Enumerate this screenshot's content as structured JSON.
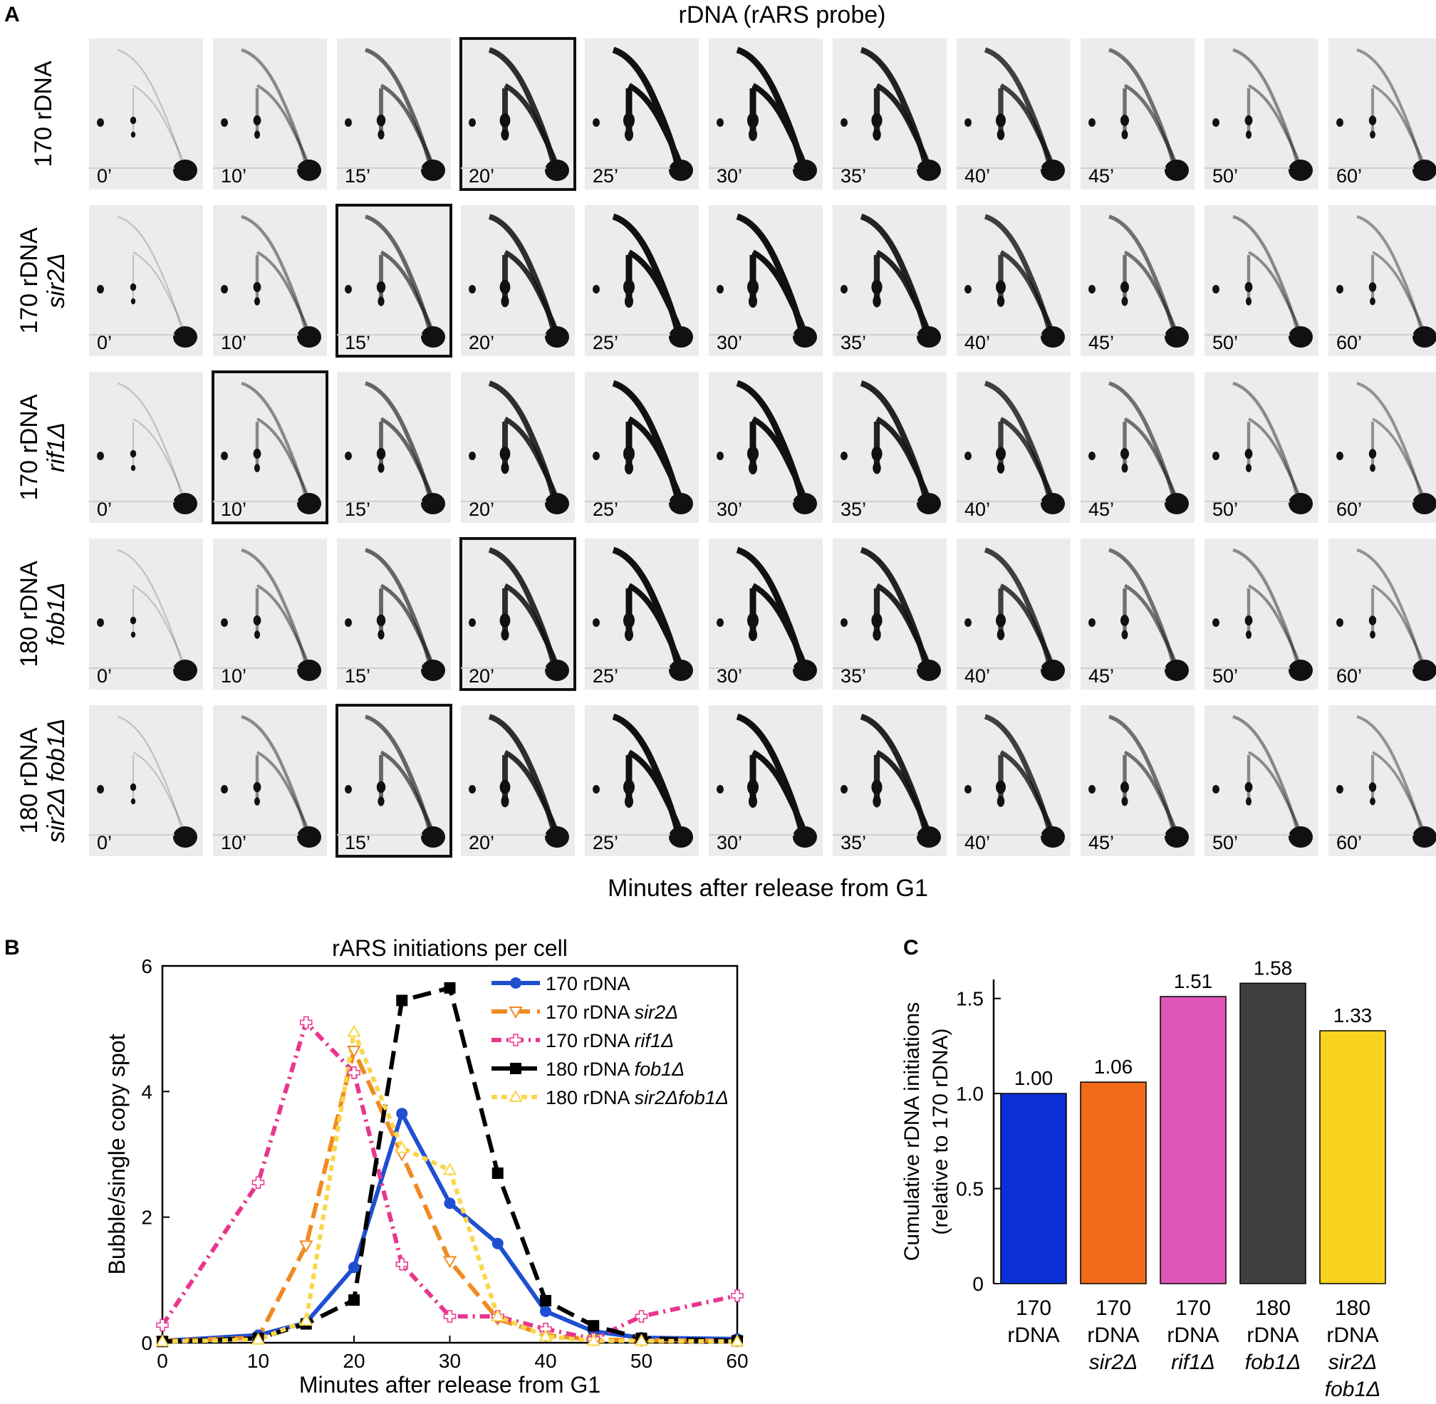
{
  "panel_a": {
    "letter": "A",
    "title": "rDNA (rARS probe)",
    "x_label": "Minutes after release from G1",
    "time_labels": [
      "0’",
      "10’",
      "15’",
      "20’",
      "25’",
      "30’",
      "35’",
      "40’",
      "45’",
      "50’",
      "60’"
    ],
    "rows": [
      {
        "line1": "170 rDNA",
        "line2": "",
        "boxed_time_index": 3
      },
      {
        "line1": "170 rDNA",
        "line2": "sir2Δ",
        "boxed_time_index": 2
      },
      {
        "line1": "170 rDNA",
        "line2": "rif1Δ",
        "boxed_time_index": 1
      },
      {
        "line1": "180 rDNA",
        "line2": "fob1Δ",
        "boxed_time_index": 3
      },
      {
        "line1": "180 rDNA",
        "line2": "sir2Δ fob1Δ",
        "boxed_time_index": 2
      }
    ]
  },
  "chart_data": [
    {
      "panel": "B",
      "type": "line",
      "title": "rARS initiations per cell",
      "xlabel": "Minutes after release from G1",
      "ylabel": "Bubble/single copy spot",
      "xlim": [
        0,
        60
      ],
      "ylim": [
        0,
        6
      ],
      "xticks": [
        0,
        10,
        20,
        30,
        40,
        50,
        60
      ],
      "yticks": [
        0,
        2,
        4,
        6
      ],
      "legend_position": "top-right",
      "series": [
        {
          "name": "170 rDNA",
          "name_main": "170 rDNA",
          "name_italic": "",
          "color": "#1f4fd1",
          "marker": "circle",
          "dash": "solid",
          "x": [
            0,
            10,
            15,
            20,
            25,
            30,
            35,
            40,
            45,
            50,
            60
          ],
          "y": [
            0.03,
            0.12,
            0.32,
            1.2,
            3.65,
            2.22,
            1.58,
            0.5,
            0.18,
            0.08,
            0.06
          ]
        },
        {
          "name": "170 rDNA sir2Δ",
          "name_main": "170 rDNA ",
          "name_italic": "sir2Δ",
          "color": "#f08a22",
          "marker": "triangle-down-open",
          "dash": "dash",
          "x": [
            0,
            10,
            15,
            20,
            25,
            30,
            35,
            40,
            45,
            50,
            60
          ],
          "y": [
            0.03,
            0.08,
            1.55,
            4.65,
            3.0,
            1.3,
            0.38,
            0.12,
            0.05,
            0.04,
            0.03
          ]
        },
        {
          "name": "170 rDNA rif1Δ",
          "name_main": "170 rDNA ",
          "name_italic": "rif1Δ",
          "color": "#e8368f",
          "marker": "plus-open",
          "dash": "dashdot",
          "x": [
            0,
            10,
            15,
            20,
            25,
            30,
            35,
            40,
            45,
            50,
            60
          ],
          "y": [
            0.28,
            2.55,
            5.1,
            4.3,
            1.25,
            0.42,
            0.42,
            0.22,
            0.06,
            0.42,
            0.75
          ]
        },
        {
          "name": "180 rDNA fob1Δ",
          "name_main": "180 rDNA ",
          "name_italic": "fob1Δ",
          "color": "#000000",
          "marker": "square",
          "dash": "longdash",
          "x": [
            0,
            10,
            15,
            20,
            25,
            30,
            35,
            40,
            45,
            50,
            60
          ],
          "y": [
            0.02,
            0.07,
            0.3,
            0.68,
            5.45,
            5.65,
            2.7,
            0.67,
            0.27,
            0.07,
            0.03
          ]
        },
        {
          "name": "180 rDNA sir2Δfob1Δ",
          "name_main": "180 rDNA ",
          "name_italic": "sir2Δfob1Δ",
          "color": "#f9d64a",
          "marker": "triangle-up-open",
          "dash": "dot",
          "x": [
            0,
            10,
            15,
            20,
            25,
            30,
            35,
            40,
            45,
            50,
            60
          ],
          "y": [
            0.02,
            0.05,
            0.35,
            4.95,
            3.1,
            2.75,
            0.42,
            0.1,
            0.03,
            0.03,
            0.02
          ]
        }
      ]
    },
    {
      "panel": "C",
      "type": "bar",
      "title": "",
      "ylabel_line1": "Cumulative rDNA initiations",
      "ylabel_line2": "(relative to 170 rDNA)",
      "ylim": [
        0,
        1.6
      ],
      "yticks": [
        0,
        0.5,
        1.0,
        1.5
      ],
      "ytick_labels": [
        "0",
        "0.5",
        "1.0",
        "1.5"
      ],
      "categories": [
        {
          "line1": "170",
          "line2": "rDNA",
          "line3": ""
        },
        {
          "line1": "170",
          "line2": "rDNA",
          "line3": "sir2Δ"
        },
        {
          "line1": "170",
          "line2": "rDNA",
          "line3": "rif1Δ"
        },
        {
          "line1": "180",
          "line2": "rDNA",
          "line3": "fob1Δ"
        },
        {
          "line1": "180",
          "line2": "rDNA",
          "line3": "sir2Δ",
          "line4": "fob1Δ"
        }
      ],
      "values": [
        1.0,
        1.06,
        1.51,
        1.58,
        1.33
      ],
      "value_labels": [
        "1.00",
        "1.06",
        "1.51",
        "1.58",
        "1.33"
      ],
      "colors": [
        "#0a2fd6",
        "#f06a1a",
        "#e055b8",
        "#404040",
        "#f8d21e"
      ]
    }
  ]
}
